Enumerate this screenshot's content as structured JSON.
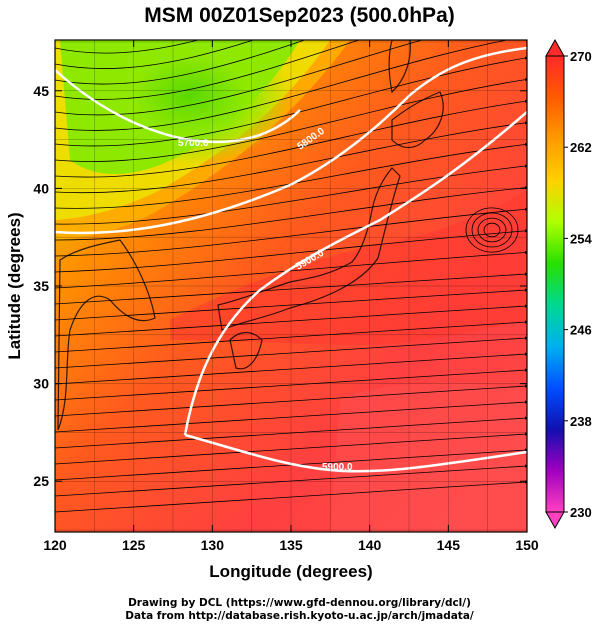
{
  "title": "MSM 00Z01Sep2023 (500.0hPa)",
  "credits": {
    "line1": "Drawing by DCL (https://www.gfd-dennou.org/library/dcl/)",
    "line2": "Data from http://database.rish.kyoto-u.ac.jp/arch/jmadata/"
  },
  "chart_data": {
    "type": "heatmap",
    "title": "MSM 00Z01Sep2023 (500.0hPa)",
    "xlabel": "Longitude (degrees)",
    "ylabel": "Latitude  (degrees)",
    "xlim": [
      120,
      150
    ],
    "ylim": [
      22.4,
      47.6
    ],
    "x_ticks": [
      "120",
      "125",
      "130",
      "135",
      "140",
      "145",
      "150"
    ],
    "y_ticks": [
      "25",
      "30",
      "35",
      "40",
      "45"
    ],
    "colorbar": {
      "range": [
        230,
        270
      ],
      "tick_labels": [
        "270",
        "262",
        "254",
        "246",
        "238",
        "230"
      ],
      "colors": [
        "#ff2a2a",
        "#ff5a00",
        "#ff9a00",
        "#ffd000",
        "#b0ff00",
        "#28e000",
        "#00d890",
        "#00b0f0",
        "#0050ff",
        "#1010b0",
        "#a000c0",
        "#ff40c0"
      ]
    },
    "contours": [
      {
        "label": "5700.0"
      },
      {
        "label": "5800.0"
      },
      {
        "label": "5900.0"
      },
      {
        "label": "5900.0"
      }
    ],
    "fields": [
      "temperature (shaded, K)",
      "geopotential height (white contours)",
      "wind streamlines (black)"
    ],
    "grid": true
  }
}
